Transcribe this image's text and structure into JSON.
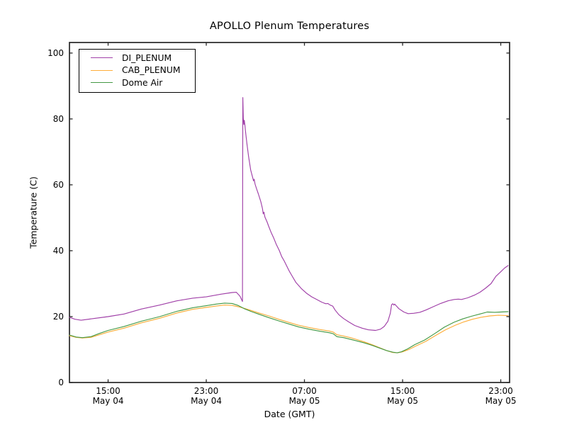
{
  "chart_data": {
    "type": "line",
    "title": "APOLLO Plenum Temperatures",
    "xlabel": "Date (GMT)",
    "ylabel": "Temperature (C)",
    "grid": false,
    "legend_position": "upper-left",
    "x_unit": "hours since May 04 00:00 GMT",
    "xlim": [
      11.85,
      47.72
    ],
    "ylim": [
      0,
      103.2
    ],
    "yticks": [
      0,
      20,
      40,
      60,
      80,
      100
    ],
    "xticks": [
      {
        "hour": 15,
        "line1": "15:00",
        "line2": "May 04"
      },
      {
        "hour": 23,
        "line1": "23:00",
        "line2": "May 04"
      },
      {
        "hour": 31,
        "line1": "07:00",
        "line2": "May 05"
      },
      {
        "hour": 39,
        "line1": "15:00",
        "line2": "May 05"
      },
      {
        "hour": 47,
        "line1": "23:00",
        "line2": "May 05"
      }
    ],
    "series": [
      {
        "name": "DI_PLENUM",
        "color": "#A040A8",
        "points": [
          [
            11.85,
            19.8
          ],
          [
            12.3,
            19.2
          ],
          [
            12.8,
            18.9
          ],
          [
            13.6,
            19.3
          ],
          [
            15,
            20.0
          ],
          [
            16.3,
            20.8
          ],
          [
            17.7,
            22.3
          ],
          [
            19.2,
            23.5
          ],
          [
            20.6,
            24.8
          ],
          [
            21.9,
            25.6
          ],
          [
            23,
            26.0
          ],
          [
            24.2,
            26.8
          ],
          [
            25.1,
            27.3
          ],
          [
            25.45,
            27.4
          ],
          [
            25.75,
            26.2
          ],
          [
            25.95,
            24.6
          ],
          [
            25.98,
            86.5
          ],
          [
            26.02,
            80.2
          ],
          [
            26.06,
            78.3
          ],
          [
            26.1,
            79.6
          ],
          [
            26.16,
            77.8
          ],
          [
            26.2,
            76.2
          ],
          [
            26.32,
            72.3
          ],
          [
            26.45,
            68.5
          ],
          [
            26.62,
            64.5
          ],
          [
            26.78,
            62.2
          ],
          [
            26.85,
            61.2
          ],
          [
            26.9,
            61.7
          ],
          [
            26.98,
            60.2
          ],
          [
            27.1,
            58.8
          ],
          [
            27.25,
            57.2
          ],
          [
            27.45,
            54.8
          ],
          [
            27.58,
            52.8
          ],
          [
            27.64,
            51.2
          ],
          [
            27.7,
            51.7
          ],
          [
            27.78,
            50.2
          ],
          [
            27.95,
            48.8
          ],
          [
            28.1,
            47.3
          ],
          [
            28.3,
            45.4
          ],
          [
            28.5,
            43.8
          ],
          [
            28.7,
            42.0
          ],
          [
            28.95,
            40.1
          ],
          [
            29.15,
            38.2
          ],
          [
            29.35,
            36.9
          ],
          [
            29.55,
            35.4
          ],
          [
            29.75,
            33.9
          ],
          [
            29.95,
            32.6
          ],
          [
            30.3,
            30.4
          ],
          [
            30.75,
            28.5
          ],
          [
            31.2,
            27.0
          ],
          [
            31.6,
            26.0
          ],
          [
            32.0,
            25.2
          ],
          [
            32.4,
            24.4
          ],
          [
            32.6,
            24.1
          ],
          [
            32.75,
            23.9
          ],
          [
            32.9,
            24.0
          ],
          [
            33.1,
            23.5
          ],
          [
            33.3,
            23.2
          ],
          [
            33.5,
            22.0
          ],
          [
            33.8,
            20.6
          ],
          [
            34.2,
            19.4
          ],
          [
            34.6,
            18.4
          ],
          [
            35.1,
            17.3
          ],
          [
            35.7,
            16.5
          ],
          [
            36.2,
            16.0
          ],
          [
            36.8,
            15.8
          ],
          [
            37.2,
            16.2
          ],
          [
            37.5,
            17.0
          ],
          [
            37.8,
            18.6
          ],
          [
            38.0,
            21.0
          ],
          [
            38.1,
            23.6
          ],
          [
            38.2,
            23.9
          ],
          [
            38.28,
            23.5
          ],
          [
            38.35,
            23.8
          ],
          [
            38.5,
            23.2
          ],
          [
            38.7,
            22.4
          ],
          [
            39.1,
            21.4
          ],
          [
            39.45,
            20.9
          ],
          [
            39.9,
            21.0
          ],
          [
            40.4,
            21.3
          ],
          [
            40.9,
            22.0
          ],
          [
            41.5,
            23.0
          ],
          [
            42.1,
            24.0
          ],
          [
            42.7,
            24.8
          ],
          [
            43.2,
            25.2
          ],
          [
            43.55,
            25.3
          ],
          [
            43.8,
            25.2
          ],
          [
            44.3,
            25.7
          ],
          [
            44.85,
            26.5
          ],
          [
            45.3,
            27.4
          ],
          [
            45.75,
            28.6
          ],
          [
            46.2,
            30.0
          ],
          [
            46.6,
            32.2
          ],
          [
            47.0,
            33.6
          ],
          [
            47.3,
            34.7
          ],
          [
            47.6,
            35.5
          ]
        ]
      },
      {
        "name": "CAB_PLENUM",
        "color": "#FFAE3A",
        "points": [
          [
            11.85,
            14.2
          ],
          [
            12.4,
            13.7
          ],
          [
            12.9,
            13.5
          ],
          [
            13.6,
            13.7
          ],
          [
            14.3,
            14.5
          ],
          [
            15,
            15.3
          ],
          [
            16.3,
            16.5
          ],
          [
            17.7,
            18.1
          ],
          [
            19.2,
            19.5
          ],
          [
            20.6,
            21.1
          ],
          [
            21.9,
            22.2
          ],
          [
            23,
            22.8
          ],
          [
            23.8,
            23.2
          ],
          [
            24.5,
            23.5
          ],
          [
            25.1,
            23.4
          ],
          [
            25.6,
            23.0
          ],
          [
            26.1,
            22.5
          ],
          [
            26.7,
            21.8
          ],
          [
            27.3,
            21.1
          ],
          [
            28.1,
            20.2
          ],
          [
            28.9,
            19.2
          ],
          [
            29.7,
            18.3
          ],
          [
            30.5,
            17.4
          ],
          [
            31.35,
            16.7
          ],
          [
            32.2,
            16.1
          ],
          [
            33.05,
            15.6
          ],
          [
            33.35,
            15.3
          ],
          [
            33.65,
            14.5
          ],
          [
            34.2,
            14.1
          ],
          [
            34.75,
            13.6
          ],
          [
            35.3,
            13.0
          ],
          [
            35.9,
            12.3
          ],
          [
            36.5,
            11.5
          ],
          [
            37.1,
            10.6
          ],
          [
            37.7,
            9.7
          ],
          [
            38.2,
            9.1
          ],
          [
            38.6,
            9.0
          ],
          [
            39.0,
            9.3
          ],
          [
            39.5,
            10.0
          ],
          [
            40.1,
            11.1
          ],
          [
            40.9,
            12.5
          ],
          [
            41.7,
            14.3
          ],
          [
            42.5,
            16.0
          ],
          [
            43.3,
            17.4
          ],
          [
            44.0,
            18.4
          ],
          [
            44.7,
            19.2
          ],
          [
            45.4,
            19.8
          ],
          [
            46.1,
            20.2
          ],
          [
            46.8,
            20.4
          ],
          [
            47.6,
            20.3
          ]
        ]
      },
      {
        "name": "Dome Air",
        "color": "#449944",
        "points": [
          [
            11.85,
            14.4
          ],
          [
            12.4,
            13.8
          ],
          [
            12.9,
            13.6
          ],
          [
            13.6,
            13.9
          ],
          [
            14.3,
            14.9
          ],
          [
            15,
            15.8
          ],
          [
            16.3,
            17.0
          ],
          [
            17.7,
            18.6
          ],
          [
            19.2,
            20.0
          ],
          [
            20.6,
            21.6
          ],
          [
            21.9,
            22.7
          ],
          [
            23,
            23.3
          ],
          [
            23.8,
            23.8
          ],
          [
            24.5,
            24.1
          ],
          [
            25.1,
            24.0
          ],
          [
            25.6,
            23.4
          ],
          [
            26.1,
            22.4
          ],
          [
            26.7,
            21.5
          ],
          [
            27.3,
            20.7
          ],
          [
            28.1,
            19.7
          ],
          [
            28.9,
            18.7
          ],
          [
            29.7,
            17.8
          ],
          [
            30.5,
            16.9
          ],
          [
            31.35,
            16.2
          ],
          [
            32.2,
            15.6
          ],
          [
            33.05,
            15.1
          ],
          [
            33.35,
            14.8
          ],
          [
            33.65,
            13.9
          ],
          [
            34.2,
            13.6
          ],
          [
            34.75,
            13.1
          ],
          [
            35.3,
            12.6
          ],
          [
            35.9,
            12.0
          ],
          [
            36.5,
            11.3
          ],
          [
            37.1,
            10.5
          ],
          [
            37.7,
            9.7
          ],
          [
            38.2,
            9.2
          ],
          [
            38.55,
            9.0
          ],
          [
            38.9,
            9.3
          ],
          [
            39.4,
            10.2
          ],
          [
            40.0,
            11.5
          ],
          [
            40.8,
            12.9
          ],
          [
            41.6,
            14.8
          ],
          [
            42.4,
            16.8
          ],
          [
            43.2,
            18.3
          ],
          [
            43.9,
            19.3
          ],
          [
            44.6,
            20.1
          ],
          [
            45.3,
            20.8
          ],
          [
            45.9,
            21.4
          ],
          [
            46.5,
            21.3
          ],
          [
            47.0,
            21.4
          ],
          [
            47.6,
            21.5
          ]
        ]
      }
    ],
    "axis_color": "#262626",
    "tick_length": 4.5
  }
}
